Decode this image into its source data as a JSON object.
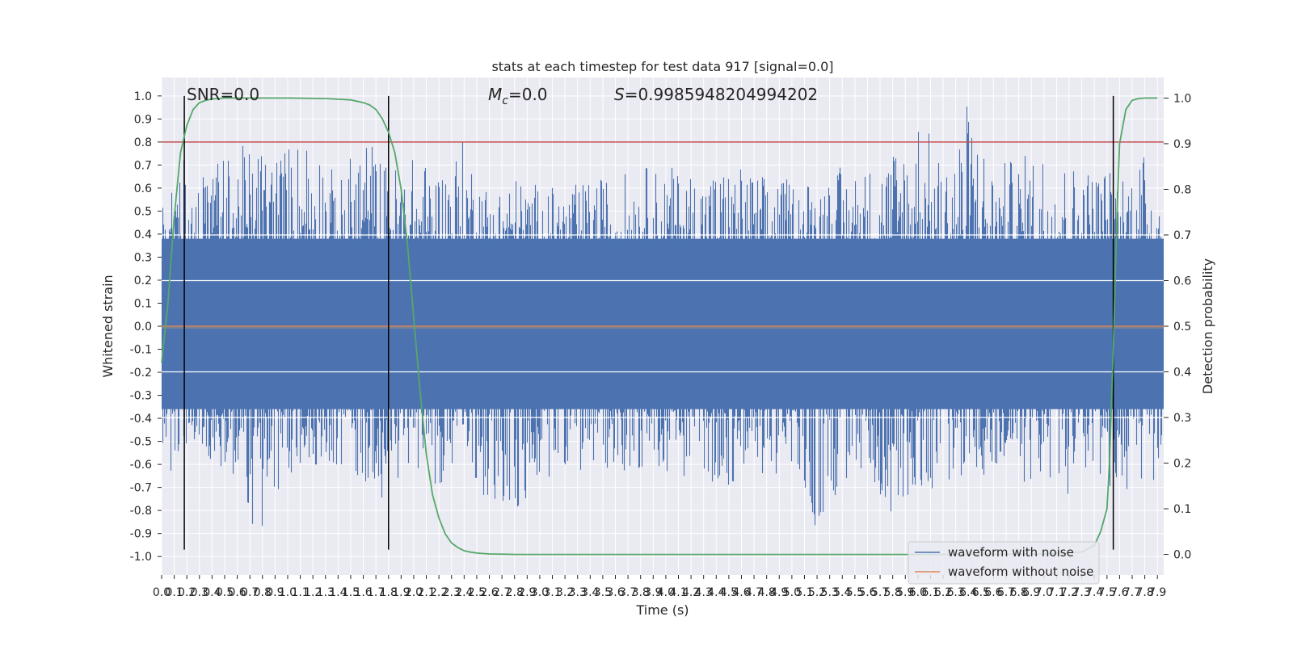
{
  "chart_data": {
    "type": "line",
    "title": "stats at each timestep for test data 917 [signal=0.0]",
    "xlabel": "Time (s)",
    "ylabel": "Whitened strain",
    "y2label": "Detection probability",
    "xlim": [
      0.0,
      7.95
    ],
    "ylim": [
      -1.08,
      1.08
    ],
    "y2lim": [
      -0.045,
      1.045
    ],
    "x_ticks": [
      0.0,
      0.1,
      0.2,
      0.3,
      0.4,
      0.5,
      0.6,
      0.7,
      0.8,
      0.9,
      1.0,
      1.1,
      1.2,
      1.3,
      1.4,
      1.5,
      1.6,
      1.7,
      1.8,
      1.9,
      2.0,
      2.1,
      2.2,
      2.3,
      2.4,
      2.5,
      2.6,
      2.7,
      2.8,
      2.9,
      3.0,
      3.1,
      3.2,
      3.3,
      3.4,
      3.5,
      3.6,
      3.7,
      3.8,
      3.9,
      4.0,
      4.1,
      4.2,
      4.3,
      4.4,
      4.5,
      4.6,
      4.7,
      4.8,
      4.9,
      5.0,
      5.1,
      5.2,
      5.3,
      5.4,
      5.5,
      5.6,
      5.7,
      5.8,
      5.9,
      6.0,
      6.1,
      6.2,
      6.3,
      6.4,
      6.5,
      6.6,
      6.7,
      6.8,
      6.9,
      7.0,
      7.1,
      7.2,
      7.3,
      7.4,
      7.5,
      7.6,
      7.7,
      7.8,
      7.9
    ],
    "y_ticks": [
      -1.0,
      -0.9,
      -0.8,
      -0.7,
      -0.6,
      -0.5,
      -0.4,
      -0.3,
      -0.2,
      -0.1,
      0.0,
      0.1,
      0.2,
      0.3,
      0.4,
      0.5,
      0.6,
      0.7,
      0.8,
      0.9,
      1.0
    ],
    "y2_ticks": [
      0.0,
      0.1,
      0.2,
      0.3,
      0.4,
      0.5,
      0.6,
      0.7,
      0.8,
      0.9,
      1.0
    ],
    "grid": true,
    "legend_position": "lower-right",
    "annotations": {
      "snr": "SNR=0.0",
      "mc_symbol": "M",
      "mc_sub": "c",
      "mc_value": "=0.0",
      "s_symbol": "S",
      "s_value": "=0.9985948204994202"
    },
    "series": [
      {
        "name": "waveform with noise",
        "color": "#4c72b0",
        "description_values": "dense noise between about -0.97 and 1.0"
      },
      {
        "name": "waveform without noise",
        "color": "#dd8452",
        "values": "flat at 0.0"
      }
    ],
    "noise_envelope": {
      "x": [
        0.0,
        0.2,
        0.4,
        0.6,
        0.8,
        1.0,
        1.2,
        1.4,
        1.6,
        1.8,
        2.0,
        2.2,
        2.4,
        2.6,
        2.8,
        3.0,
        3.2,
        3.4,
        3.6,
        3.8,
        4.0,
        4.2,
        4.4,
        4.6,
        4.8,
        5.0,
        5.2,
        5.4,
        5.6,
        5.8,
        6.0,
        6.2,
        6.4,
        6.6,
        6.8,
        7.0,
        7.2,
        7.4,
        7.6,
        7.8,
        7.95
      ],
      "upper": [
        0.6,
        0.75,
        0.7,
        0.78,
        0.8,
        0.8,
        0.9,
        0.62,
        0.88,
        0.7,
        0.74,
        0.7,
        0.82,
        0.6,
        0.66,
        0.62,
        0.6,
        0.64,
        0.66,
        0.7,
        0.7,
        0.68,
        0.7,
        0.7,
        0.66,
        0.64,
        0.66,
        0.7,
        0.7,
        0.8,
        0.97,
        0.7,
        1.0,
        0.7,
        0.74,
        0.8,
        0.72,
        0.7,
        0.7,
        0.76,
        0.6
      ],
      "lower": [
        -0.68,
        -0.55,
        -0.6,
        -0.72,
        -0.97,
        -0.7,
        -0.6,
        -0.62,
        -0.7,
        -0.76,
        -0.6,
        -0.7,
        -0.6,
        -0.78,
        -0.9,
        -0.7,
        -0.6,
        -0.66,
        -0.62,
        -0.64,
        -0.64,
        -0.66,
        -0.7,
        -0.7,
        -0.64,
        -0.66,
        -0.92,
        -0.7,
        -0.66,
        -0.82,
        -0.7,
        -0.74,
        -0.62,
        -0.7,
        -0.68,
        -0.7,
        -0.74,
        -0.76,
        -0.7,
        -0.76,
        -0.6
      ]
    },
    "detection_probability": {
      "color": "#55a868",
      "x": [
        0.0,
        0.05,
        0.1,
        0.15,
        0.2,
        0.25,
        0.3,
        0.35,
        0.4,
        0.5,
        0.7,
        1.0,
        1.3,
        1.5,
        1.6,
        1.65,
        1.7,
        1.75,
        1.8,
        1.85,
        1.9,
        1.95,
        2.0,
        2.05,
        2.1,
        2.15,
        2.2,
        2.25,
        2.3,
        2.35,
        2.4,
        2.45,
        2.5,
        2.6,
        2.8,
        3.5,
        4.5,
        5.5,
        6.5,
        7.0,
        7.3,
        7.4,
        7.45,
        7.5,
        7.52,
        7.55,
        7.58,
        7.6,
        7.65,
        7.7,
        7.75,
        7.8,
        7.85,
        7.9
      ],
      "values": [
        0.42,
        0.55,
        0.74,
        0.88,
        0.94,
        0.975,
        0.99,
        0.995,
        0.998,
        1.0,
        1.0,
        1.0,
        0.999,
        0.996,
        0.99,
        0.985,
        0.975,
        0.955,
        0.925,
        0.88,
        0.8,
        0.68,
        0.52,
        0.36,
        0.22,
        0.13,
        0.08,
        0.045,
        0.025,
        0.015,
        0.008,
        0.005,
        0.003,
        0.001,
        0.0,
        0.0,
        0.0,
        0.0,
        0.0,
        0.001,
        0.005,
        0.02,
        0.05,
        0.1,
        0.2,
        0.45,
        0.75,
        0.9,
        0.975,
        0.995,
        0.999,
        1.0,
        1.0,
        1.0
      ]
    },
    "vertical_lines": [
      0.18,
      1.8,
      7.55
    ],
    "threshold_lines": [
      {
        "axis": "left",
        "value": 0.8,
        "color": "#c44e52"
      }
    ],
    "white_lines_right_axis": [
      0.3,
      0.4,
      0.6,
      0.7
    ]
  }
}
